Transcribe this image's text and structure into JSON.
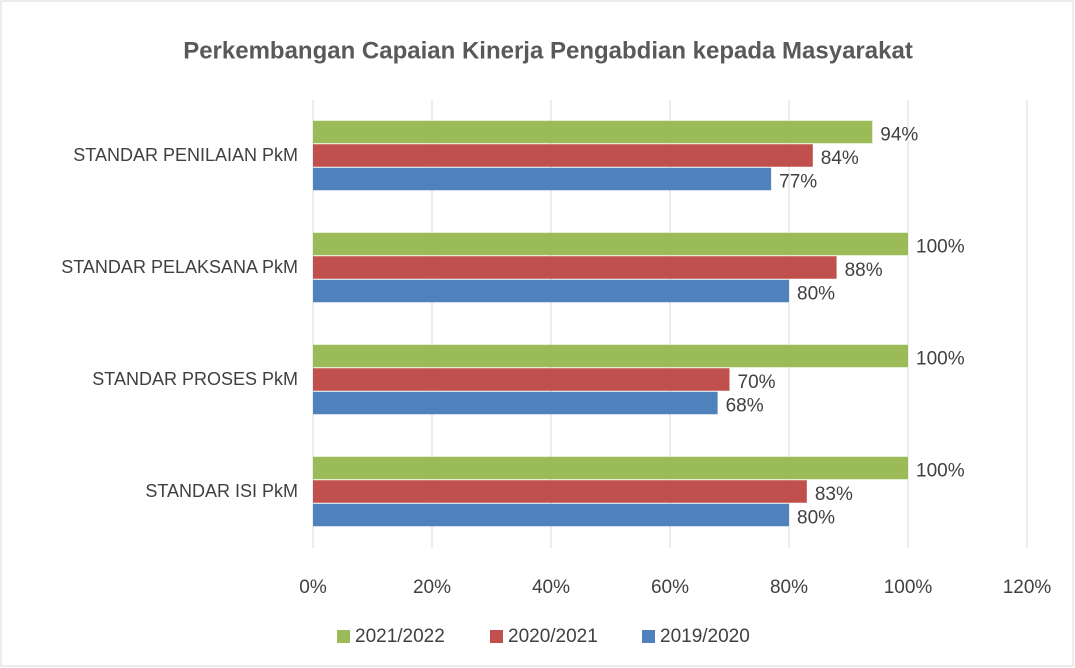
{
  "chart_data": {
    "type": "hbar",
    "title": "Perkembangan Capaian Kinerja Pengabdian kepada Masyarakat",
    "categories": [
      "STANDAR PENILAIAN PkM",
      "STANDAR PELAKSANA PkM",
      "STANDAR PROSES PkM",
      "STANDAR ISI PkM"
    ],
    "series": [
      {
        "name": "2021/2022",
        "color": "#9bbb59",
        "values": [
          94,
          100,
          100,
          100
        ],
        "value_labels": [
          "94%",
          "100%",
          "100%",
          "100%"
        ]
      },
      {
        "name": "2020/2021",
        "color": "#c0504d",
        "values": [
          84,
          88,
          70,
          83
        ],
        "value_labels": [
          "84%",
          "88%",
          "70%",
          "83%"
        ]
      },
      {
        "name": "2019/2020",
        "color": "#4f81bd",
        "values": [
          77,
          80,
          68,
          80
        ],
        "value_labels": [
          "77%",
          "80%",
          "68%",
          "80%"
        ]
      }
    ],
    "xlim": [
      0,
      120
    ],
    "xticks": [
      {
        "value": 0,
        "label": "0%"
      },
      {
        "value": 20,
        "label": "20%"
      },
      {
        "value": 40,
        "label": "40%"
      },
      {
        "value": 60,
        "label": "60%"
      },
      {
        "value": 80,
        "label": "80%"
      },
      {
        "value": 100,
        "label": "100%"
      },
      {
        "value": 120,
        "label": "120%"
      }
    ],
    "grid": true,
    "legend": "bottom"
  }
}
